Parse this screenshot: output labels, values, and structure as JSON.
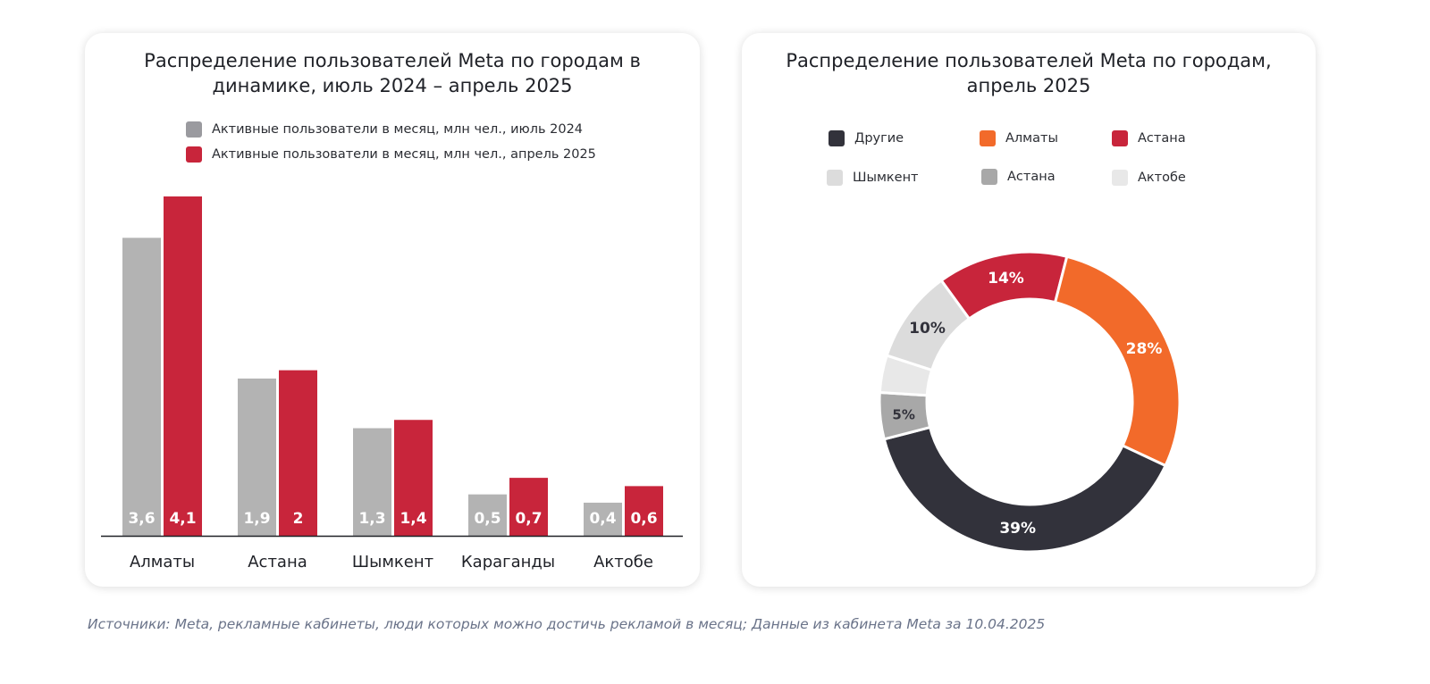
{
  "colors": {
    "gray_bar": "#b3b3b3",
    "red_bar": "#c8253b",
    "dark": "#32323b",
    "orange": "#f26a2a",
    "red": "#c8253b",
    "mid_gray": "#a8a8a8",
    "light_gray": "#dcdcdc",
    "lighter_gray": "#e8e8e8"
  },
  "bar_chart": {
    "title": "Распределение пользователей Meta по городам в динамике, июль 2024 – апрель 2025",
    "legend": [
      {
        "label": "Активные пользователи в месяц, млн чел., июль 2024",
        "color": "#9a9a9f"
      },
      {
        "label": "Активные пользователи в месяц, млн чел., апрель 2025",
        "color": "#c8253b"
      }
    ]
  },
  "donut_chart": {
    "title": "Распределение пользователей Meta по городам, апрель 2025",
    "legend": [
      {
        "label": "Другие",
        "color": "#32323b"
      },
      {
        "label": "Алматы",
        "color": "#f26a2a"
      },
      {
        "label": "Астана",
        "color": "#c8253b"
      },
      {
        "label": "Шымкент",
        "color": "#dcdcdc"
      },
      {
        "label": "Астана",
        "color": "#a8a8a8"
      },
      {
        "label": "Актобе",
        "color": "#e8e8e8"
      }
    ]
  },
  "chart_data": [
    {
      "type": "bar",
      "title": "Распределение пользователей Meta по городам в динамике, июль 2024 – апрель 2025",
      "categories": [
        "Алматы",
        "Астана",
        "Шымкент",
        "Караганды",
        "Актобе"
      ],
      "series": [
        {
          "name": "Активные пользователи в месяц, млн чел., июль 2024",
          "values": [
            3.6,
            1.9,
            1.3,
            0.5,
            0.4
          ],
          "labels": [
            "3,6",
            "1,9",
            "1,3",
            "0,5",
            "0,4"
          ],
          "color": "#b3b3b3"
        },
        {
          "name": "Активные пользователи в месяц, млн чел., апрель 2025",
          "values": [
            4.1,
            2,
            1.4,
            0.7,
            0.6
          ],
          "labels": [
            "4,1",
            "2",
            "1,4",
            "0,7",
            "0,6"
          ],
          "color": "#c8253b"
        }
      ],
      "ylim": [
        0,
        4.1
      ],
      "grid": false
    },
    {
      "type": "pie",
      "donut": true,
      "title": "Распределение пользователей Meta по городам, апрель 2025",
      "slices": [
        {
          "label": "Астана",
          "value": 14,
          "text": "14%",
          "color": "#c8253b",
          "text_color": "#ffffff"
        },
        {
          "label": "Алматы",
          "value": 28,
          "text": "28%",
          "color": "#f26a2a",
          "text_color": "#ffffff"
        },
        {
          "label": "Другие",
          "value": 39,
          "text": "39%",
          "color": "#32323b",
          "text_color": "#ffffff"
        },
        {
          "label": "Астана",
          "value": 5,
          "text": "5%",
          "color": "#a8a8a8",
          "text_color": "#32323b"
        },
        {
          "label": "Актобе",
          "value": 4,
          "text": "",
          "color": "#e8e8e8",
          "text_color": "#32323b"
        },
        {
          "label": "Шымкент",
          "value": 10,
          "text": "10%",
          "color": "#dcdcdc",
          "text_color": "#32323b"
        }
      ]
    }
  ],
  "source_note": "Источники: Meta, рекламные кабинеты, люди которых можно достичь рекламой в месяц; Данные из кабинета Meta за 10.04.2025"
}
